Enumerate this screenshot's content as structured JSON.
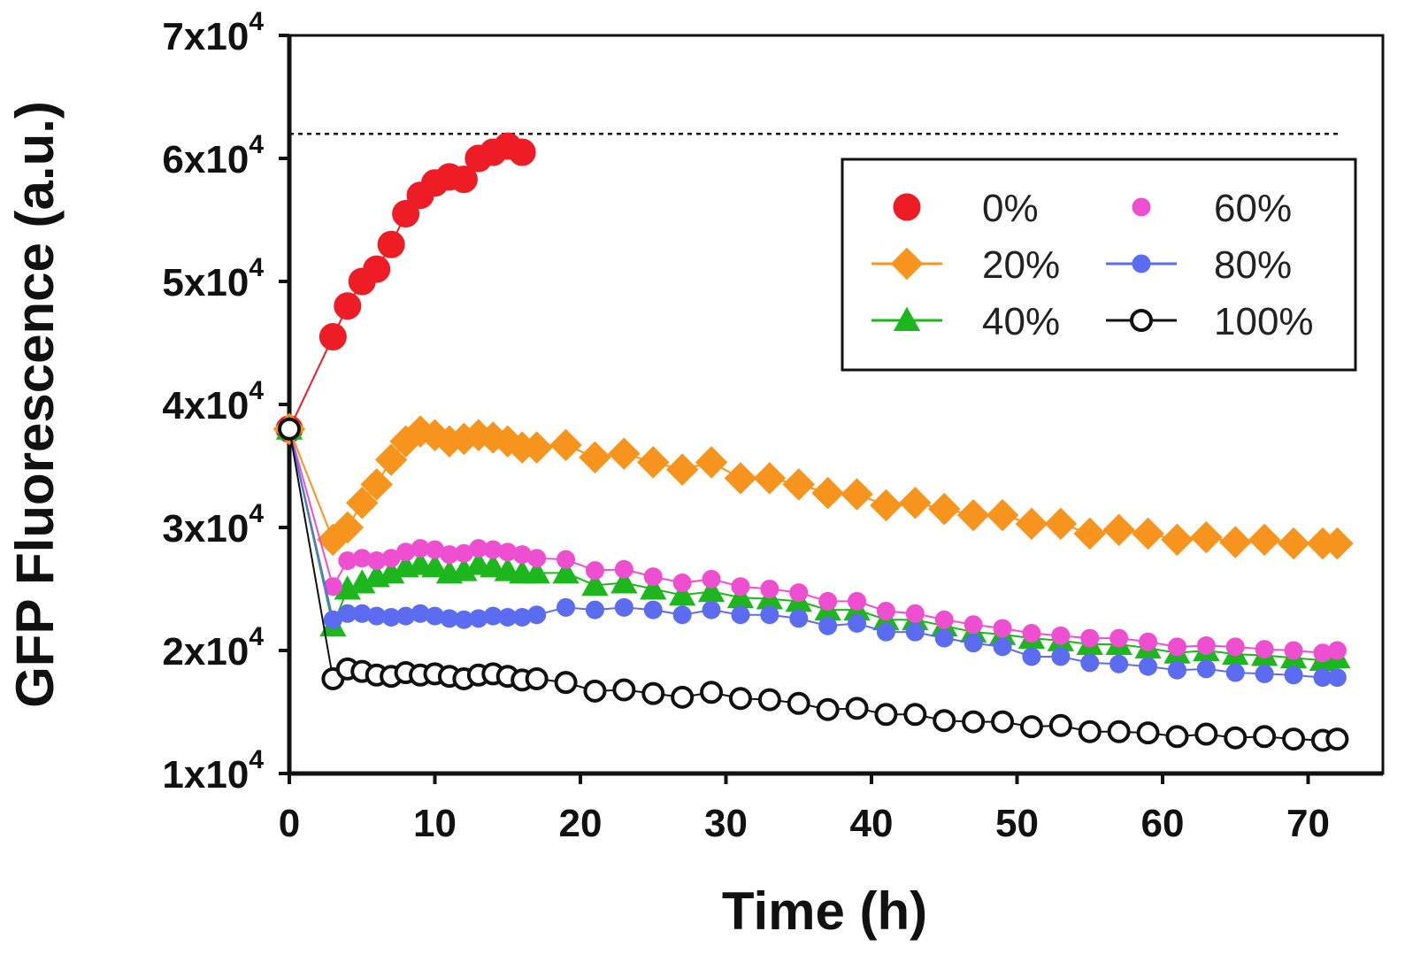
{
  "chart_data": {
    "type": "line",
    "title": "",
    "xlabel": "Time (h)",
    "ylabel": "GFP Fluorescence (a.u.)",
    "xlim": [
      0,
      73
    ],
    "ylim": [
      10000,
      70000
    ],
    "xticks": [
      0,
      10,
      20,
      30,
      40,
      50,
      60,
      70
    ],
    "yticks": [
      {
        "value": 10000,
        "mantissa": "1",
        "base": "x10",
        "exp": "4"
      },
      {
        "value": 20000,
        "mantissa": "2",
        "base": "x10",
        "exp": "4"
      },
      {
        "value": 30000,
        "mantissa": "3",
        "base": "x10",
        "exp": "4"
      },
      {
        "value": 40000,
        "mantissa": "4",
        "base": "x10",
        "exp": "4"
      },
      {
        "value": 50000,
        "mantissa": "5",
        "base": "x10",
        "exp": "4"
      },
      {
        "value": 60000,
        "mantissa": "6",
        "base": "x10",
        "exp": "4"
      },
      {
        "value": 70000,
        "mantissa": "7",
        "base": "x10",
        "exp": "4"
      }
    ],
    "reference_line": {
      "y": 62000,
      "style": "dotted"
    },
    "grid": false,
    "legend_position": "top-right",
    "series": [
      {
        "name": "0%",
        "color": "#ee1c24",
        "marker": "circle",
        "filled": true,
        "points": [
          [
            0,
            38000
          ],
          [
            3,
            45500
          ],
          [
            4,
            48000
          ],
          [
            5,
            50000
          ],
          [
            6,
            51000
          ],
          [
            7,
            53000
          ],
          [
            8,
            55500
          ],
          [
            9,
            57000
          ],
          [
            10,
            58000
          ],
          [
            11,
            58500
          ],
          [
            12,
            58300
          ],
          [
            13,
            60000
          ],
          [
            14,
            60500
          ],
          [
            15,
            61000
          ],
          [
            16,
            60500
          ]
        ]
      },
      {
        "name": "20%",
        "color": "#f7941d",
        "marker": "diamond",
        "filled": true,
        "points": [
          [
            0,
            38000
          ],
          [
            3,
            29000
          ],
          [
            4,
            30000
          ],
          [
            5,
            32000
          ],
          [
            6,
            33500
          ],
          [
            7,
            35500
          ],
          [
            8,
            37000
          ],
          [
            9,
            37800
          ],
          [
            10,
            37500
          ],
          [
            11,
            37000
          ],
          [
            12,
            37200
          ],
          [
            13,
            37500
          ],
          [
            14,
            37300
          ],
          [
            15,
            37000
          ],
          [
            16,
            36500
          ],
          [
            17,
            36500
          ],
          [
            19,
            36700
          ],
          [
            21,
            35700
          ],
          [
            23,
            36000
          ],
          [
            25,
            35300
          ],
          [
            27,
            34700
          ],
          [
            29,
            35300
          ],
          [
            31,
            34000
          ],
          [
            33,
            34000
          ],
          [
            35,
            33500
          ],
          [
            37,
            32800
          ],
          [
            39,
            32700
          ],
          [
            41,
            31800
          ],
          [
            43,
            32000
          ],
          [
            45,
            31500
          ],
          [
            47,
            31000
          ],
          [
            49,
            31000
          ],
          [
            51,
            30300
          ],
          [
            53,
            30300
          ],
          [
            55,
            29500
          ],
          [
            57,
            29800
          ],
          [
            59,
            29500
          ],
          [
            61,
            29000
          ],
          [
            63,
            29200
          ],
          [
            65,
            28800
          ],
          [
            67,
            29000
          ],
          [
            69,
            28700
          ],
          [
            71,
            28700
          ],
          [
            72,
            28700
          ]
        ]
      },
      {
        "name": "40%",
        "color": "#1db71d",
        "marker": "triangle",
        "filled": true,
        "points": [
          [
            0,
            38000
          ],
          [
            3,
            22000
          ],
          [
            4,
            25000
          ],
          [
            5,
            25500
          ],
          [
            6,
            26000
          ],
          [
            7,
            26300
          ],
          [
            8,
            26800
          ],
          [
            9,
            27000
          ],
          [
            10,
            26800
          ],
          [
            11,
            26300
          ],
          [
            12,
            26500
          ],
          [
            13,
            27000
          ],
          [
            14,
            26800
          ],
          [
            15,
            26500
          ],
          [
            16,
            26300
          ],
          [
            17,
            26300
          ],
          [
            19,
            26300
          ],
          [
            21,
            25300
          ],
          [
            23,
            25500
          ],
          [
            25,
            25000
          ],
          [
            27,
            24500
          ],
          [
            29,
            24800
          ],
          [
            31,
            24300
          ],
          [
            33,
            24200
          ],
          [
            35,
            24000
          ],
          [
            37,
            23300
          ],
          [
            39,
            23300
          ],
          [
            41,
            22500
          ],
          [
            43,
            22500
          ],
          [
            45,
            22000
          ],
          [
            47,
            21500
          ],
          [
            49,
            21300
          ],
          [
            51,
            21000
          ],
          [
            53,
            20800
          ],
          [
            55,
            20500
          ],
          [
            57,
            20500
          ],
          [
            59,
            20200
          ],
          [
            61,
            19800
          ],
          [
            63,
            20000
          ],
          [
            65,
            19700
          ],
          [
            67,
            19600
          ],
          [
            69,
            19400
          ],
          [
            71,
            19200
          ],
          [
            72,
            19400
          ]
        ]
      },
      {
        "name": "60%",
        "color": "#ee4fd0",
        "marker": "circle",
        "filled": true,
        "points": [
          [
            0,
            38000
          ],
          [
            3,
            25200
          ],
          [
            4,
            27300
          ],
          [
            5,
            27500
          ],
          [
            6,
            27300
          ],
          [
            7,
            27500
          ],
          [
            8,
            28000
          ],
          [
            9,
            28300
          ],
          [
            10,
            28200
          ],
          [
            11,
            27800
          ],
          [
            12,
            27900
          ],
          [
            13,
            28300
          ],
          [
            14,
            28200
          ],
          [
            15,
            28000
          ],
          [
            16,
            27800
          ],
          [
            17,
            27500
          ],
          [
            19,
            27400
          ],
          [
            21,
            26500
          ],
          [
            23,
            26600
          ],
          [
            25,
            26000
          ],
          [
            27,
            25500
          ],
          [
            29,
            25800
          ],
          [
            31,
            25200
          ],
          [
            33,
            25000
          ],
          [
            35,
            24700
          ],
          [
            37,
            24000
          ],
          [
            39,
            24000
          ],
          [
            41,
            23200
          ],
          [
            43,
            23000
          ],
          [
            45,
            22500
          ],
          [
            47,
            22100
          ],
          [
            49,
            21800
          ],
          [
            51,
            21400
          ],
          [
            53,
            21200
          ],
          [
            55,
            21000
          ],
          [
            57,
            21000
          ],
          [
            59,
            20700
          ],
          [
            61,
            20300
          ],
          [
            63,
            20400
          ],
          [
            65,
            20300
          ],
          [
            67,
            20100
          ],
          [
            69,
            20000
          ],
          [
            71,
            19800
          ],
          [
            72,
            20000
          ]
        ]
      },
      {
        "name": "80%",
        "color": "#5b6cf0",
        "marker": "circle",
        "filled": true,
        "points": [
          [
            0,
            38000
          ],
          [
            3,
            22500
          ],
          [
            4,
            23000
          ],
          [
            5,
            23000
          ],
          [
            6,
            22800
          ],
          [
            7,
            22700
          ],
          [
            8,
            22800
          ],
          [
            9,
            23000
          ],
          [
            10,
            22800
          ],
          [
            11,
            22600
          ],
          [
            12,
            22500
          ],
          [
            13,
            22600
          ],
          [
            14,
            22800
          ],
          [
            15,
            22700
          ],
          [
            16,
            22700
          ],
          [
            17,
            22900
          ],
          [
            19,
            23500
          ],
          [
            21,
            23300
          ],
          [
            23,
            23500
          ],
          [
            25,
            23300
          ],
          [
            27,
            22900
          ],
          [
            29,
            23300
          ],
          [
            31,
            22900
          ],
          [
            33,
            22900
          ],
          [
            35,
            22600
          ],
          [
            37,
            22000
          ],
          [
            39,
            22200
          ],
          [
            41,
            21500
          ],
          [
            43,
            21500
          ],
          [
            45,
            21000
          ],
          [
            47,
            20600
          ],
          [
            49,
            20300
          ],
          [
            51,
            19500
          ],
          [
            53,
            19500
          ],
          [
            55,
            19000
          ],
          [
            57,
            18900
          ],
          [
            59,
            18700
          ],
          [
            61,
            18400
          ],
          [
            63,
            18500
          ],
          [
            65,
            18200
          ],
          [
            67,
            18100
          ],
          [
            69,
            18000
          ],
          [
            71,
            17800
          ],
          [
            72,
            17800
          ]
        ]
      },
      {
        "name": "100%",
        "color": "#111111",
        "marker": "circle",
        "filled": false,
        "points": [
          [
            0,
            38000
          ],
          [
            3,
            17700
          ],
          [
            4,
            18500
          ],
          [
            5,
            18300
          ],
          [
            6,
            18000
          ],
          [
            7,
            17900
          ],
          [
            8,
            18200
          ],
          [
            9,
            18000
          ],
          [
            10,
            18100
          ],
          [
            11,
            17900
          ],
          [
            12,
            17700
          ],
          [
            13,
            18000
          ],
          [
            14,
            18100
          ],
          [
            15,
            17900
          ],
          [
            16,
            17600
          ],
          [
            17,
            17700
          ],
          [
            19,
            17400
          ],
          [
            21,
            16700
          ],
          [
            23,
            16800
          ],
          [
            25,
            16500
          ],
          [
            27,
            16200
          ],
          [
            29,
            16600
          ],
          [
            31,
            16100
          ],
          [
            33,
            16000
          ],
          [
            35,
            15700
          ],
          [
            37,
            15200
          ],
          [
            39,
            15300
          ],
          [
            41,
            14800
          ],
          [
            43,
            14800
          ],
          [
            45,
            14300
          ],
          [
            47,
            14200
          ],
          [
            49,
            14200
          ],
          [
            51,
            13800
          ],
          [
            53,
            13900
          ],
          [
            55,
            13400
          ],
          [
            57,
            13400
          ],
          [
            59,
            13300
          ],
          [
            61,
            13000
          ],
          [
            63,
            13200
          ],
          [
            65,
            12900
          ],
          [
            67,
            13000
          ],
          [
            69,
            12800
          ],
          [
            71,
            12700
          ],
          [
            72,
            12800
          ]
        ]
      }
    ]
  }
}
